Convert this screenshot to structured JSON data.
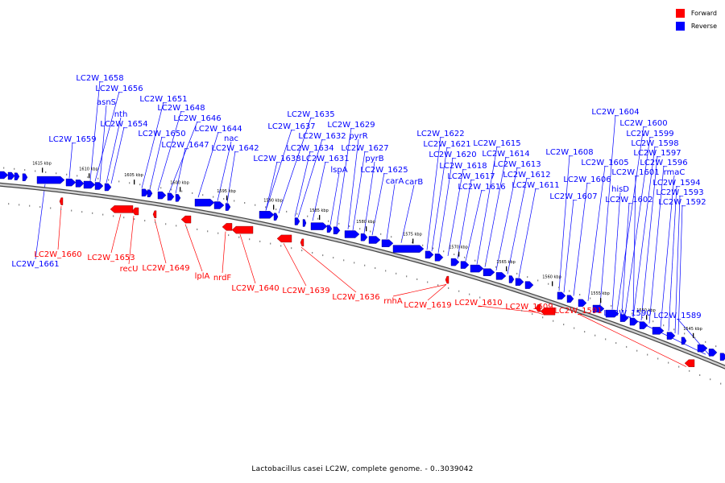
{
  "legend": {
    "forward": {
      "label": "Forward",
      "color": "#ff0000"
    },
    "reverse": {
      "label": "Reverse",
      "color": "#0000ff"
    }
  },
  "caption": "Lactobacillus casei LC2W, complete genome. - 0..3039042",
  "backbone_ticks": [
    "1615 kbp",
    "1610 kbp",
    "1605 kbp",
    "1600 kbp",
    "1595 kbp",
    "1590 kbp",
    "1585 kbp",
    "1580 kbp",
    "1575 kbp",
    "1570 kbp",
    "1565 kbp",
    "1560 kbp",
    "1555 kbp",
    "1550 kbp",
    "1545 kbp"
  ],
  "reverse_gene_labels": [
    "LC2W_1658",
    "LC2W_1656",
    "asnS",
    "nth",
    "LC2W_1654",
    "LC2W_1659",
    "LC2W_1651",
    "LC2W_1648",
    "LC2W_1646",
    "LC2W_1650",
    "LC2W_1644",
    "nac",
    "LC2W_1647",
    "LC2W_1642",
    "LC2W_1635",
    "LC2W_1637",
    "LC2W_1632",
    "LC2W_1634",
    "LC2W_1638",
    "LC2W_1631",
    "lspA",
    "LC2W_1629",
    "pyrR",
    "LC2W_1627",
    "pyrB",
    "LC2W_1625",
    "carA",
    "carB",
    "LC2W_1622",
    "LC2W_1621",
    "LC2W_1620",
    "LC2W_1618",
    "LC2W_1617",
    "LC2W_1616",
    "LC2W_1615",
    "LC2W_1614",
    "LC2W_1613",
    "LC2W_1612",
    "LC2W_1611",
    "LC2W_1608",
    "LC2W_1606",
    "LC2W_1607",
    "LC2W_1605",
    "LC2W_1604",
    "LC2W_1600",
    "LC2W_1599",
    "LC2W_1598",
    "LC2W_1597",
    "LC2W_1596",
    "LC2W_1601",
    "hisD",
    "LC2W_1602",
    "rmaC",
    "LC2W_1594",
    "LC2W_1593",
    "LC2W_1592",
    "LC2W_1661",
    "LC2W_1590",
    "LC2W_1589"
  ],
  "forward_gene_labels": [
    "LC2W_1660",
    "LC2W_1653",
    "recU",
    "LC2W_1649",
    "lplA",
    "nrdF",
    "LC2W_1640",
    "LC2W_1639",
    "LC2W_1636",
    "rnhA",
    "LC2W_1619",
    "LC2W_1610",
    "LC2W_1609",
    "LC2W_1591"
  ]
}
